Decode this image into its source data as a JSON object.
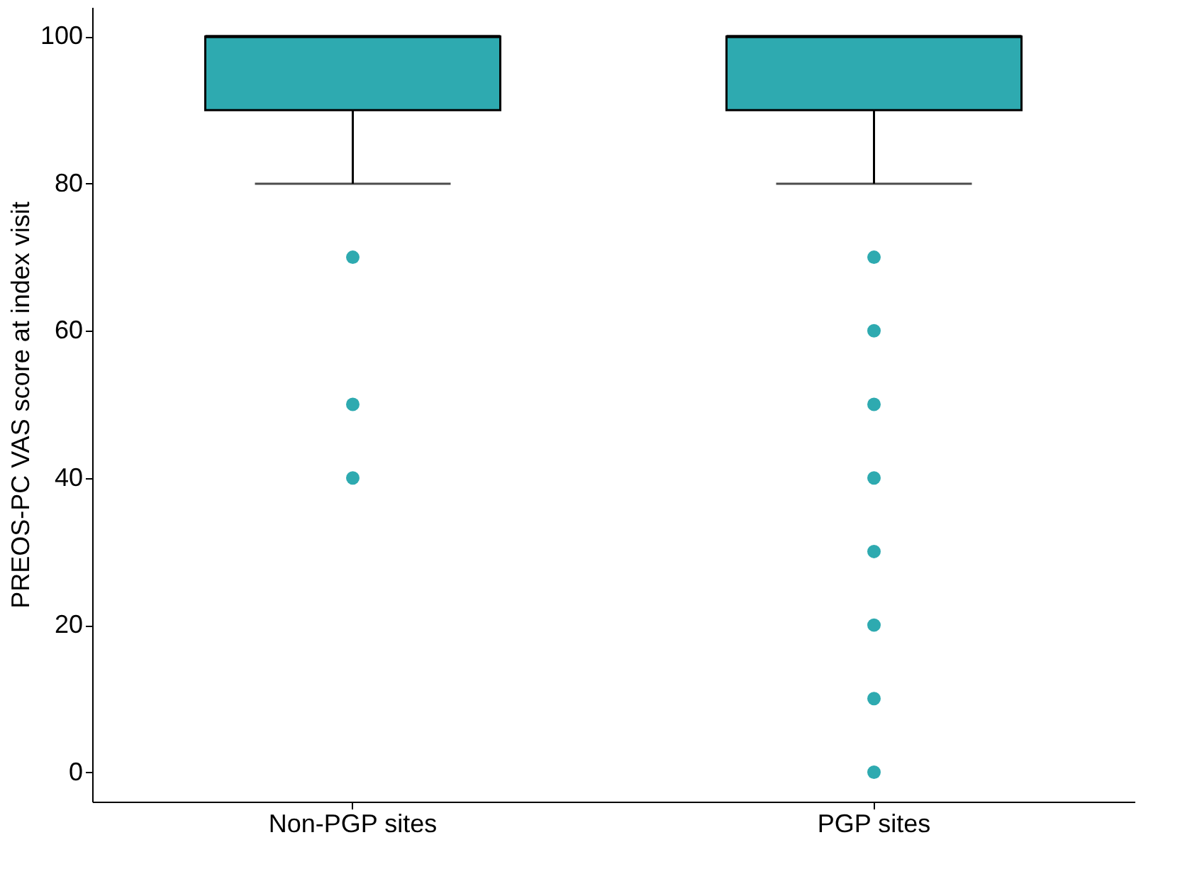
{
  "chart_data": {
    "type": "box",
    "ylabel": "PREOS-PC VAS score at index visit",
    "categories": [
      "Non-PGP sites",
      "PGP sites"
    ],
    "series": [
      {
        "color": "#2eaab0",
        "boxes": [
          {
            "low": 80,
            "q1": 90,
            "median": 100,
            "q3": 100,
            "high": 100,
            "outliers": [
              70,
              50,
              40
            ]
          },
          {
            "low": 80,
            "q1": 90,
            "median": 100,
            "q3": 100,
            "high": 100,
            "outliers": [
              70,
              60,
              50,
              40,
              30,
              20,
              10,
              0
            ]
          }
        ]
      }
    ],
    "ylim": [
      -4,
      104
    ],
    "yticks": [
      0,
      20,
      40,
      60,
      80,
      100
    ],
    "grid": false
  }
}
